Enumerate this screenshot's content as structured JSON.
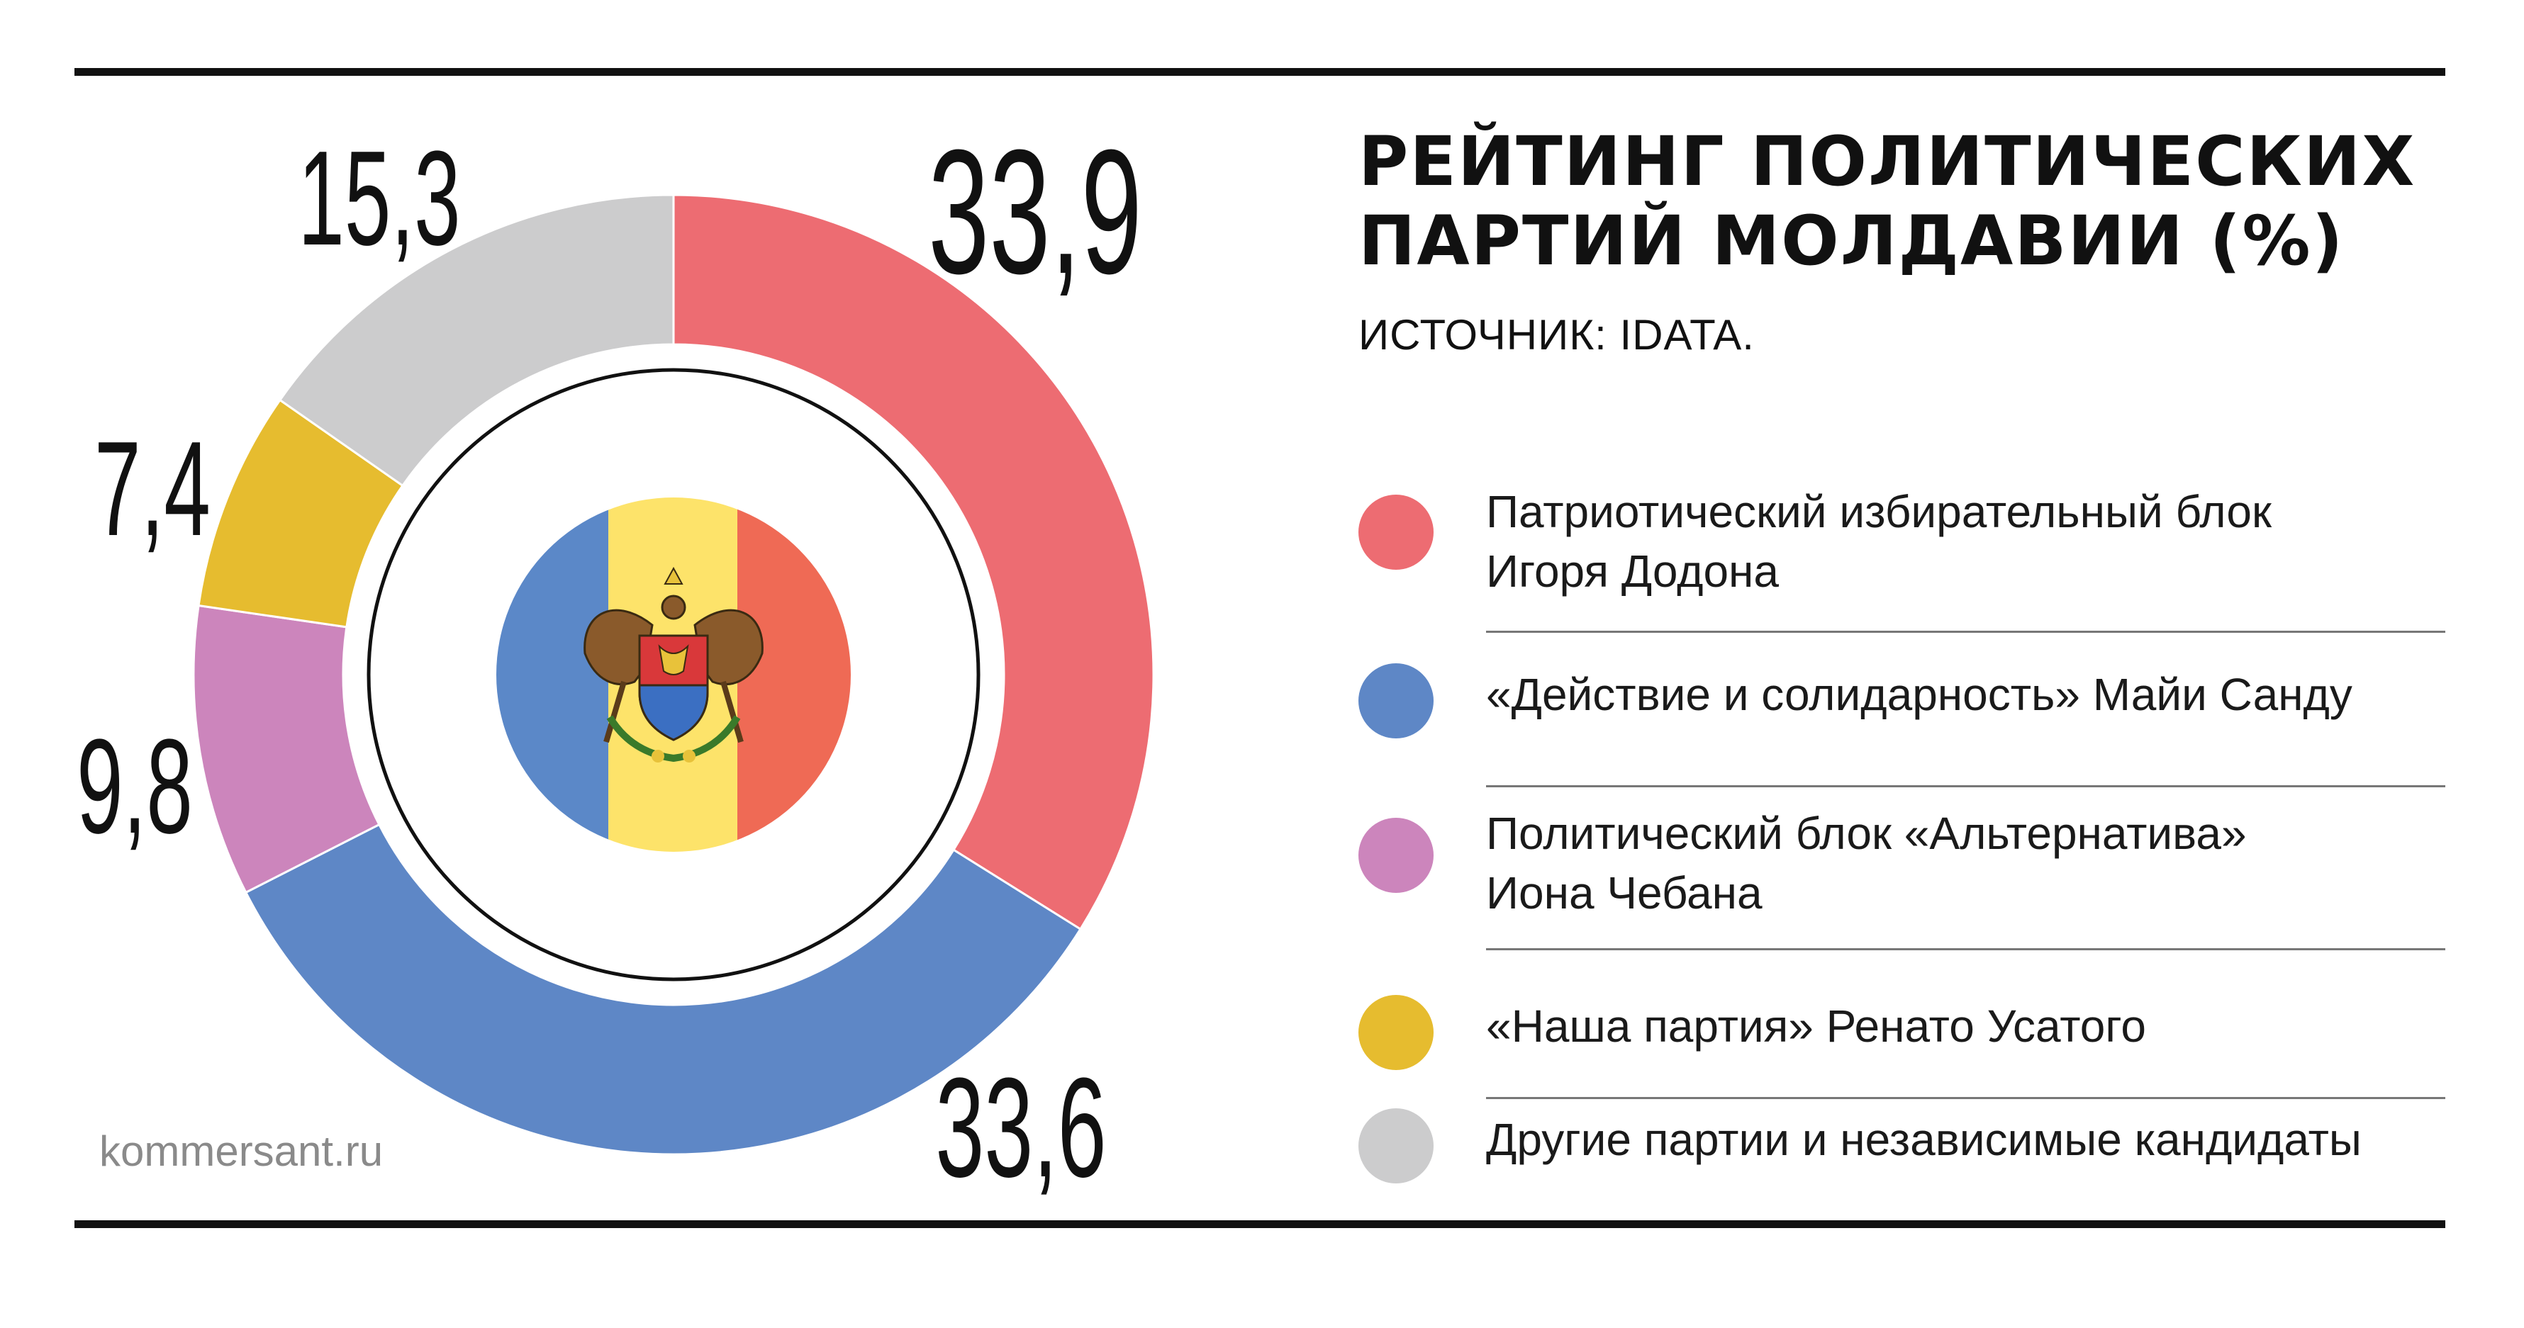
{
  "title_lines": [
    "РЕЙТИНГ ПОЛИТИЧЕСКИХ",
    "ПАРТИЙ МОЛДАВИИ (%)"
  ],
  "source": "ИСТОЧНИК:  IDATA.",
  "watermark": "kommersant.ru",
  "flag": {
    "colors": [
      "#5b88c8",
      "#fde36a",
      "#ef6a55"
    ],
    "emblem": "moldova-coat-of-arms"
  },
  "chart_data": {
    "type": "pie",
    "variant": "donut",
    "start": "top",
    "direction": "clockwise",
    "series": [
      {
        "name": "Патриотический избирательный блок Игоря Додона",
        "label_lines": [
          "Патриотический избирательный блок",
          "Игоря Додона"
        ],
        "value": 33.9,
        "value_label": "33,9",
        "color": "#ed6c72"
      },
      {
        "name": "«Действие и солидарность» Майи Санду",
        "label_lines": [
          "«Действие и солидарность» Майи Санду"
        ],
        "value": 33.6,
        "value_label": "33,6",
        "color": "#5e87c6"
      },
      {
        "name": "Политический блок «Альтернатива» Иона Чебана",
        "label_lines": [
          "Политический блок «Альтернатива»",
          "Иона Чебана"
        ],
        "value": 9.8,
        "value_label": "9,8",
        "color": "#cc85bc"
      },
      {
        "name": "«Наша партия» Ренато Усатого",
        "label_lines": [
          "«Наша партия» Ренато Усатого"
        ],
        "value": 7.4,
        "value_label": "7,4",
        "color": "#e6bc2f"
      },
      {
        "name": "Другие партии и независимые кандидаты",
        "label_lines": [
          "Другие партии и независимые кандидаты"
        ],
        "value": 15.3,
        "value_label": "15,3",
        "color": "#cccccd"
      }
    ]
  }
}
